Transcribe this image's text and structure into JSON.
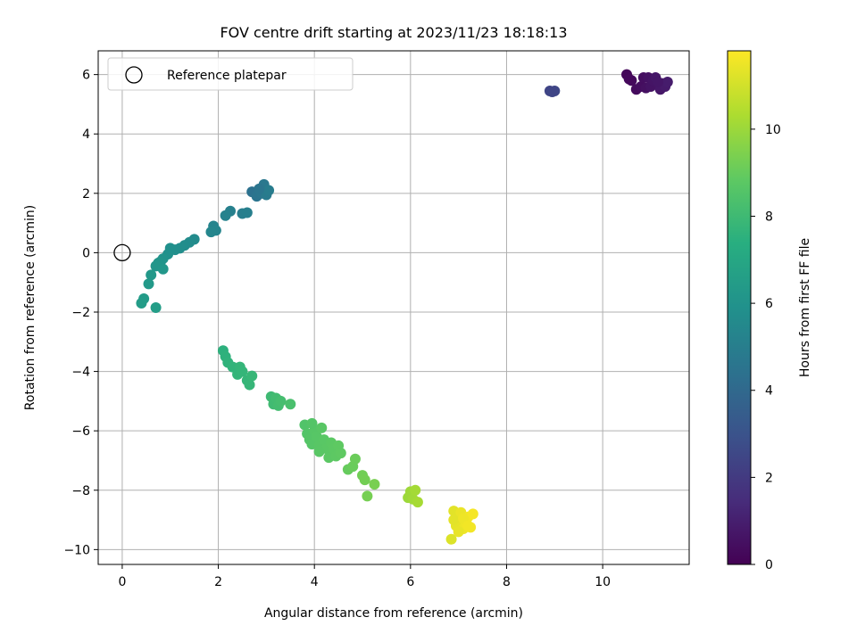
{
  "chart_data": {
    "type": "scatter",
    "title": "FOV centre drift starting at 2023/11/23 18:18:13",
    "xlabel": "Angular distance from reference (arcmin)",
    "ylabel": "Rotation from reference (arcmin)",
    "xlim": [
      -0.5,
      11.8
    ],
    "ylim": [
      -10.5,
      6.8
    ],
    "xticks": [
      0,
      2,
      4,
      6,
      8,
      10
    ],
    "yticks": [
      -10,
      -8,
      -6,
      -4,
      -2,
      0,
      2,
      4,
      6
    ],
    "grid": true,
    "legend": {
      "placement": "upper-left",
      "entries": [
        "Reference platepar"
      ]
    },
    "reference_point": {
      "x": 0,
      "y": 0,
      "marker": "open-circle"
    },
    "colorbar": {
      "label": "Hours from first FF file",
      "colormap": "viridis",
      "range": [
        0,
        11.8
      ],
      "ticks": [
        0,
        2,
        4,
        6,
        8,
        10
      ]
    },
    "series": [
      {
        "points": [
          [
            10.5,
            6.0
          ],
          [
            10.6,
            5.8
          ],
          [
            10.7,
            5.5
          ],
          [
            10.8,
            5.6
          ],
          [
            10.85,
            5.9
          ],
          [
            10.9,
            5.55
          ],
          [
            10.95,
            5.9
          ],
          [
            11.0,
            5.6
          ],
          [
            11.05,
            5.8
          ],
          [
            11.1,
            5.9
          ],
          [
            11.2,
            5.5
          ],
          [
            11.25,
            5.7
          ],
          [
            11.3,
            5.6
          ],
          [
            11.35,
            5.75
          ],
          [
            10.55,
            5.85
          ],
          [
            11.15,
            5.75
          ]
        ],
        "hours": [
          0.2,
          0.3,
          0.35,
          0.4,
          0.45,
          0.5,
          0.55,
          0.6,
          0.65,
          0.7,
          0.75,
          0.8,
          0.85,
          0.9,
          0.25,
          0.72
        ]
      },
      {
        "points": [
          [
            8.9,
            5.45
          ],
          [
            9.0,
            5.45
          ],
          [
            8.95,
            5.42
          ]
        ],
        "hours": [
          2.4,
          2.5,
          2.45
        ]
      },
      {
        "points": [
          [
            2.7,
            2.05
          ],
          [
            2.8,
            1.9
          ],
          [
            2.9,
            2.0
          ],
          [
            2.95,
            2.3
          ],
          [
            3.0,
            1.95
          ],
          [
            3.05,
            2.1
          ],
          [
            2.85,
            2.15
          ],
          [
            2.5,
            1.32
          ],
          [
            2.6,
            1.35
          ],
          [
            2.25,
            1.4
          ],
          [
            2.15,
            1.25
          ],
          [
            1.9,
            0.9
          ],
          [
            1.95,
            0.75
          ],
          [
            1.85,
            0.7
          ],
          [
            1.5,
            0.45
          ],
          [
            1.4,
            0.35
          ],
          [
            1.3,
            0.25
          ],
          [
            1.2,
            0.15
          ],
          [
            1.1,
            0.1
          ],
          [
            1.0,
            0.15
          ],
          [
            0.95,
            -0.05
          ],
          [
            0.85,
            -0.2
          ],
          [
            0.8,
            -0.3
          ],
          [
            0.75,
            -0.35
          ],
          [
            0.7,
            -0.45
          ],
          [
            0.6,
            -0.75
          ],
          [
            0.55,
            -1.05
          ],
          [
            0.45,
            -1.55
          ],
          [
            0.4,
            -1.7
          ],
          [
            0.7,
            -1.85
          ],
          [
            0.85,
            -0.55
          ]
        ],
        "hours": [
          4.4,
          4.5,
          4.6,
          4.7,
          4.8,
          4.9,
          4.55,
          5.0,
          5.05,
          5.1,
          5.2,
          5.3,
          5.35,
          5.4,
          5.6,
          5.65,
          5.7,
          5.75,
          5.8,
          5.85,
          5.9,
          6.0,
          6.05,
          6.1,
          6.15,
          6.25,
          6.3,
          6.4,
          6.45,
          6.5,
          6.2
        ]
      },
      {
        "points": [
          [
            2.1,
            -3.3
          ],
          [
            2.15,
            -3.5
          ],
          [
            2.2,
            -3.7
          ],
          [
            2.3,
            -3.85
          ],
          [
            2.4,
            -4.1
          ],
          [
            2.45,
            -3.85
          ],
          [
            2.5,
            -4.0
          ],
          [
            2.6,
            -4.3
          ],
          [
            2.65,
            -4.45
          ],
          [
            2.7,
            -4.15
          ],
          [
            3.1,
            -4.85
          ],
          [
            3.15,
            -5.1
          ],
          [
            3.2,
            -4.9
          ],
          [
            3.25,
            -5.15
          ],
          [
            3.3,
            -5.0
          ],
          [
            3.5,
            -5.1
          ],
          [
            3.8,
            -5.8
          ],
          [
            3.85,
            -6.1
          ],
          [
            3.9,
            -6.3
          ],
          [
            3.95,
            -6.45
          ],
          [
            4.0,
            -6.0
          ],
          [
            4.05,
            -6.2
          ],
          [
            4.1,
            -6.5
          ],
          [
            4.15,
            -5.9
          ],
          [
            4.2,
            -6.3
          ],
          [
            4.25,
            -6.6
          ],
          [
            4.3,
            -6.9
          ],
          [
            4.35,
            -6.4
          ],
          [
            4.4,
            -6.6
          ],
          [
            4.45,
            -6.85
          ],
          [
            4.5,
            -6.5
          ],
          [
            4.55,
            -6.75
          ],
          [
            4.7,
            -7.3
          ],
          [
            4.8,
            -7.2
          ],
          [
            4.85,
            -6.95
          ],
          [
            5.0,
            -7.5
          ],
          [
            5.05,
            -7.65
          ],
          [
            5.1,
            -8.2
          ],
          [
            5.25,
            -7.8
          ],
          [
            3.95,
            -5.75
          ],
          [
            4.1,
            -6.7
          ]
        ],
        "hours": [
          7.5,
          7.55,
          7.6,
          7.65,
          7.7,
          7.72,
          7.74,
          7.76,
          7.78,
          7.8,
          8.0,
          8.05,
          8.1,
          8.15,
          8.2,
          8.3,
          8.5,
          8.55,
          8.6,
          8.62,
          8.64,
          8.66,
          8.68,
          8.7,
          8.72,
          8.74,
          8.76,
          8.78,
          8.8,
          8.82,
          8.84,
          8.86,
          9.0,
          9.05,
          9.1,
          9.2,
          9.25,
          9.3,
          9.35,
          8.58,
          8.7
        ]
      },
      {
        "points": [
          [
            5.95,
            -8.25
          ],
          [
            6.0,
            -8.05
          ],
          [
            6.05,
            -8.3
          ],
          [
            6.1,
            -8.0
          ],
          [
            6.15,
            -8.4
          ],
          [
            6.85,
            -9.65
          ],
          [
            6.9,
            -8.7
          ],
          [
            6.95,
            -9.2
          ],
          [
            7.0,
            -9.0
          ],
          [
            7.05,
            -8.75
          ],
          [
            7.1,
            -9.3
          ],
          [
            7.15,
            -9.1
          ],
          [
            7.2,
            -8.9
          ],
          [
            7.25,
            -9.25
          ],
          [
            7.3,
            -8.8
          ],
          [
            6.9,
            -9.0
          ],
          [
            7.0,
            -9.4
          ],
          [
            7.1,
            -8.95
          ],
          [
            7.2,
            -9.2
          ]
        ],
        "hours": [
          10.0,
          10.05,
          10.1,
          10.15,
          10.2,
          11.2,
          11.3,
          11.35,
          11.4,
          11.45,
          11.5,
          11.55,
          11.6,
          11.62,
          11.65,
          11.32,
          11.42,
          11.52,
          11.6
        ]
      }
    ]
  }
}
